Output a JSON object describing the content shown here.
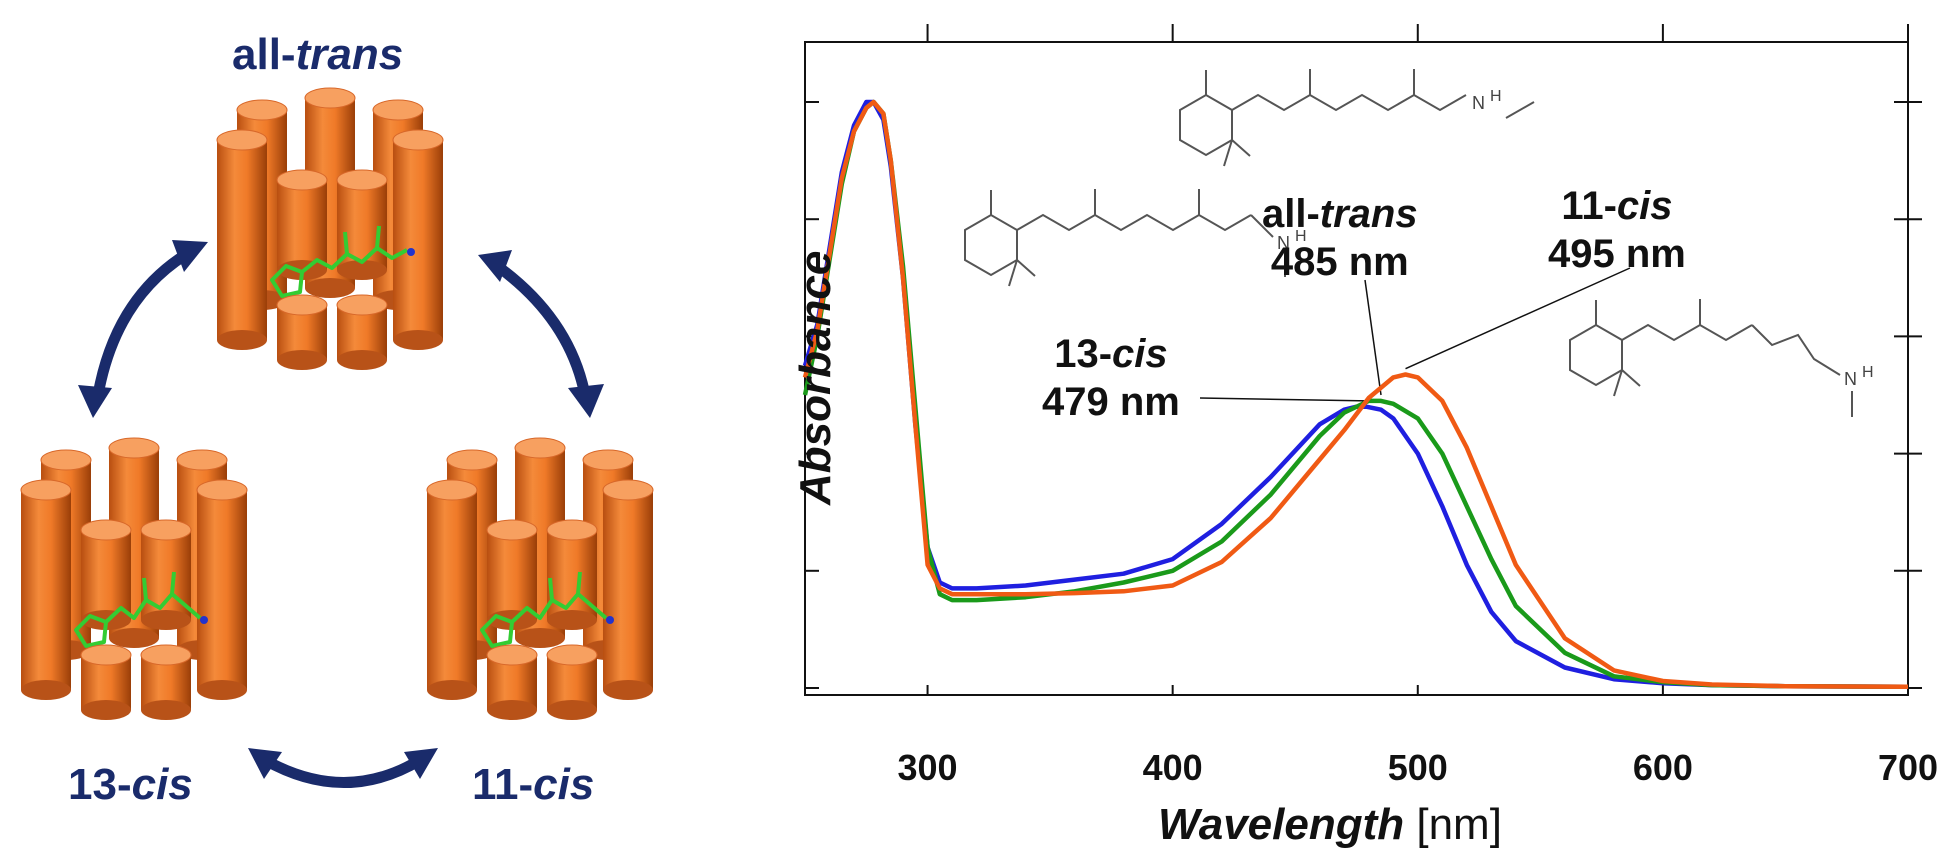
{
  "isomer_labels": {
    "all_trans": {
      "prefix": "all-",
      "italic": "trans"
    },
    "cis13": {
      "prefix": "13-",
      "italic": "cis"
    },
    "cis11": {
      "prefix": "11-",
      "italic": "cis"
    }
  },
  "colors": {
    "helix": "#e8782a",
    "arrow": "#1a2b6b",
    "retinal": "#33cc33",
    "all_trans_line": "#1a9a1a",
    "cis13_line": "#1f1fe0",
    "cis11_line": "#f05a14"
  },
  "annotations": {
    "all_trans": {
      "prefix": "all-",
      "italic": "trans",
      "value": "485 nm"
    },
    "cis11": {
      "prefix": "11-",
      "italic": "cis",
      "value": "495 nm"
    },
    "cis13": {
      "prefix": "13-",
      "italic": "cis",
      "value": "479 nm"
    }
  },
  "chart_data": {
    "type": "line",
    "xlabel_italic": "Wavelength",
    "xlabel_unit": "[nm]",
    "ylabel": "Absorbance",
    "xlim": [
      250,
      700
    ],
    "ylim": [
      0,
      1.05
    ],
    "xticks": [
      300,
      400,
      500,
      600,
      700
    ],
    "grid": false,
    "series": [
      {
        "key": "cis13_line",
        "x": [
          250,
          255,
          260,
          265,
          270,
          275,
          278,
          282,
          285,
          290,
          295,
          300,
          305,
          310,
          320,
          340,
          360,
          380,
          400,
          420,
          440,
          460,
          470,
          475,
          479,
          485,
          490,
          500,
          510,
          520,
          530,
          540,
          560,
          580,
          600,
          620,
          650,
          700
        ],
        "y": [
          0.55,
          0.62,
          0.75,
          0.88,
          0.96,
          1.0,
          1.0,
          0.97,
          0.89,
          0.7,
          0.45,
          0.24,
          0.18,
          0.17,
          0.17,
          0.175,
          0.185,
          0.195,
          0.22,
          0.28,
          0.36,
          0.45,
          0.475,
          0.48,
          0.48,
          0.475,
          0.46,
          0.4,
          0.31,
          0.21,
          0.13,
          0.08,
          0.035,
          0.015,
          0.008,
          0.005,
          0.003,
          0.002
        ]
      },
      {
        "key": "all_trans_line",
        "x": [
          250,
          255,
          260,
          265,
          270,
          275,
          278,
          282,
          285,
          290,
          295,
          300,
          305,
          310,
          320,
          340,
          360,
          380,
          400,
          420,
          440,
          460,
          470,
          480,
          485,
          490,
          500,
          510,
          520,
          530,
          540,
          560,
          580,
          600,
          620,
          650,
          700
        ],
        "y": [
          0.5,
          0.6,
          0.73,
          0.86,
          0.95,
          0.99,
          1.0,
          0.98,
          0.9,
          0.72,
          0.48,
          0.24,
          0.16,
          0.15,
          0.15,
          0.155,
          0.165,
          0.18,
          0.2,
          0.25,
          0.33,
          0.43,
          0.47,
          0.49,
          0.49,
          0.485,
          0.46,
          0.4,
          0.31,
          0.22,
          0.14,
          0.06,
          0.02,
          0.01,
          0.005,
          0.003,
          0.002
        ]
      },
      {
        "key": "cis11_line",
        "x": [
          250,
          255,
          260,
          265,
          270,
          275,
          278,
          282,
          285,
          290,
          295,
          300,
          305,
          310,
          320,
          340,
          360,
          380,
          400,
          420,
          440,
          460,
          470,
          480,
          490,
          495,
          500,
          510,
          520,
          530,
          540,
          560,
          580,
          600,
          620,
          650,
          700
        ],
        "y": [
          0.53,
          0.61,
          0.74,
          0.87,
          0.95,
          0.99,
          1.0,
          0.98,
          0.9,
          0.7,
          0.45,
          0.21,
          0.17,
          0.16,
          0.16,
          0.16,
          0.162,
          0.165,
          0.175,
          0.215,
          0.29,
          0.39,
          0.44,
          0.495,
          0.53,
          0.535,
          0.53,
          0.49,
          0.41,
          0.31,
          0.21,
          0.085,
          0.03,
          0.012,
          0.006,
          0.003,
          0.002
        ]
      }
    ]
  }
}
